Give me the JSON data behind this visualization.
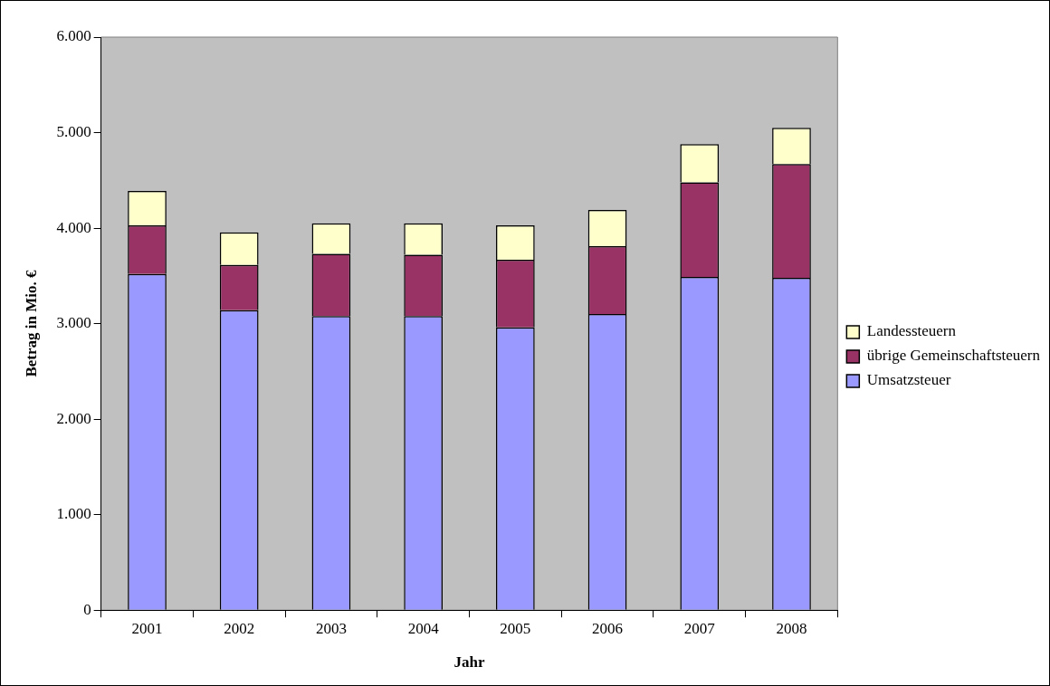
{
  "chart_data": {
    "type": "bar",
    "stacked": true,
    "xlabel": "Jahr",
    "ylabel": "Betrag in Mio. €",
    "categories": [
      "2001",
      "2002",
      "2003",
      "2004",
      "2005",
      "2006",
      "2007",
      "2008"
    ],
    "series": [
      {
        "name": "Umsatzsteuer",
        "color": "#9999ff",
        "values": [
          3520,
          3140,
          3080,
          3080,
          2960,
          3100,
          3490,
          3480
        ]
      },
      {
        "name": "übrige Gemeinschaftsteuern",
        "color": "#993366",
        "values": [
          510,
          475,
          650,
          640,
          710,
          710,
          990,
          1190
        ]
      },
      {
        "name": "Landessteuern",
        "color": "#ffffcc",
        "values": [
          360,
          340,
          320,
          330,
          360,
          380,
          400,
          380
        ]
      }
    ],
    "ylim": [
      0,
      6000
    ],
    "yticks": [
      {
        "value": 0,
        "label": "0"
      },
      {
        "value": 1000,
        "label": "1.000"
      },
      {
        "value": 2000,
        "label": "2.000"
      },
      {
        "value": 3000,
        "label": "3.000"
      },
      {
        "value": 4000,
        "label": "4.000"
      },
      {
        "value": 5000,
        "label": "5.000"
      },
      {
        "value": 6000,
        "label": "6.000"
      }
    ],
    "grid": false,
    "legend": "right"
  }
}
